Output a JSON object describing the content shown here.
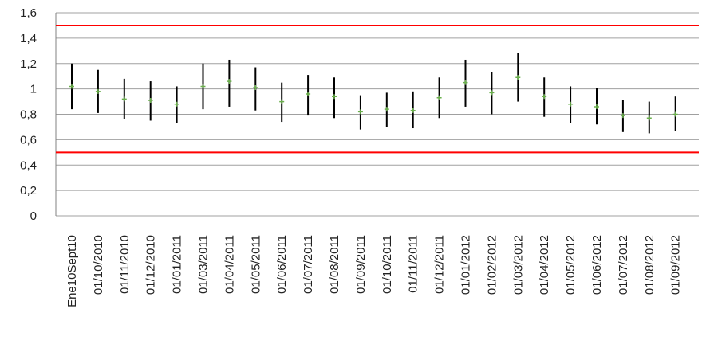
{
  "chart_data": {
    "type": "scatter",
    "subtype": "error-bar",
    "title": "",
    "xlabel": "",
    "ylabel": "",
    "ylim": [
      0,
      1.6
    ],
    "yticks": [
      "0",
      "0,2",
      "0,4",
      "0,6",
      "0,8",
      "1",
      "1,2",
      "1,4",
      "1,6"
    ],
    "grid": "horizontal",
    "legend": "none",
    "categories": [
      "Ene10Sept10",
      "01/10/2010",
      "01/11/2010",
      "01/12/2010",
      "01/01/2011",
      "01/03/2011",
      "01/04/2011",
      "01/05/2011",
      "01/06/2011",
      "01/07/2011",
      "01/08/2011",
      "01/09/2011",
      "01/10/2011",
      "01/11/2011",
      "01/12/2011",
      "01/01/2012",
      "01/02/2012",
      "01/03/2012",
      "01/04/2012",
      "01/05/2012",
      "01/06/2012",
      "01/07/2012",
      "01/08/2012",
      "01/09/2012"
    ],
    "values": [
      1.02,
      0.98,
      0.92,
      0.91,
      0.88,
      1.02,
      1.06,
      1.01,
      0.9,
      0.96,
      0.94,
      0.82,
      0.84,
      0.83,
      0.93,
      1.05,
      0.97,
      1.09,
      0.94,
      0.88,
      0.86,
      0.79,
      0.77,
      0.8
    ],
    "upper": [
      1.2,
      1.15,
      1.08,
      1.06,
      1.02,
      1.2,
      1.23,
      1.17,
      1.05,
      1.11,
      1.09,
      0.95,
      0.97,
      0.98,
      1.09,
      1.23,
      1.13,
      1.28,
      1.09,
      1.02,
      1.01,
      0.91,
      0.9,
      0.94
    ],
    "lower": [
      0.84,
      0.81,
      0.76,
      0.75,
      0.73,
      0.84,
      0.86,
      0.83,
      0.74,
      0.79,
      0.77,
      0.68,
      0.7,
      0.69,
      0.77,
      0.86,
      0.8,
      0.9,
      0.78,
      0.73,
      0.72,
      0.66,
      0.65,
      0.67
    ],
    "reference_lines": [
      {
        "value": 1.5,
        "color": "#ff0000"
      },
      {
        "value": 0.5,
        "color": "#ff0000"
      }
    ],
    "colors": {
      "point": "#6ab04c",
      "error_bar": "#000000",
      "grid": "#a0a0a0",
      "axis": "#808080"
    }
  }
}
